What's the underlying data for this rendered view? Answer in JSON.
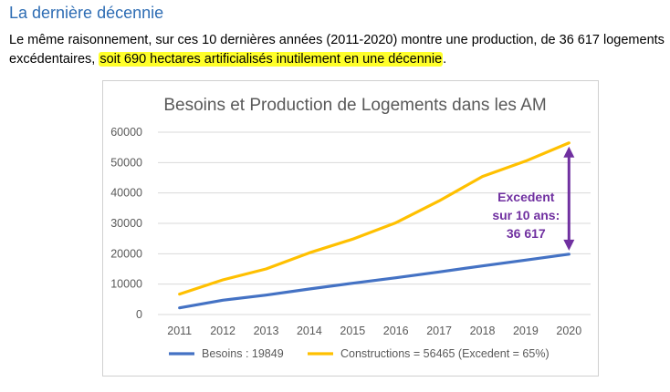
{
  "heading": "La dernière décennie",
  "paragraph": {
    "part1": "Le même raisonnement, sur ces 10 dernières années (2011-2020) montre une production, de 36 617 logements excédentaires, ",
    "highlight": "soit 690 hectares artificialisés inutilement en une décennie",
    "part2": "."
  },
  "colors": {
    "heading": "#2e6db4",
    "highlight": "#ffff2a",
    "besoins": "#4472c4",
    "constructions": "#ffc000",
    "annotation": "#7030a0",
    "gridline": "#d9d9d9"
  },
  "chart_data": {
    "type": "line",
    "title": "Besoins et Production de Logements dans les AM",
    "categories": [
      "2011",
      "2012",
      "2013",
      "2014",
      "2015",
      "2016",
      "2017",
      "2018",
      "2019",
      "2020"
    ],
    "series": [
      {
        "name": "Besoins : 19849",
        "color": "#4472c4",
        "values": [
          2200,
          4700,
          6400,
          8400,
          10300,
          12100,
          14000,
          16000,
          17900,
          19849
        ]
      },
      {
        "name": "Constructions = 56465 (Excedent = 65%)",
        "color": "#ffc000",
        "values": [
          6700,
          11400,
          15000,
          20300,
          24800,
          30200,
          37400,
          45400,
          50500,
          56465
        ]
      }
    ],
    "ylim": [
      0,
      60000
    ],
    "yticks": [
      "0",
      "10000",
      "20000",
      "30000",
      "40000",
      "50000",
      "60000"
    ],
    "grid": true,
    "legend_position": "bottom",
    "annotation": {
      "lines": [
        "Excedent",
        "sur 10 ans:",
        "36 617"
      ],
      "at_category": "2020"
    }
  }
}
